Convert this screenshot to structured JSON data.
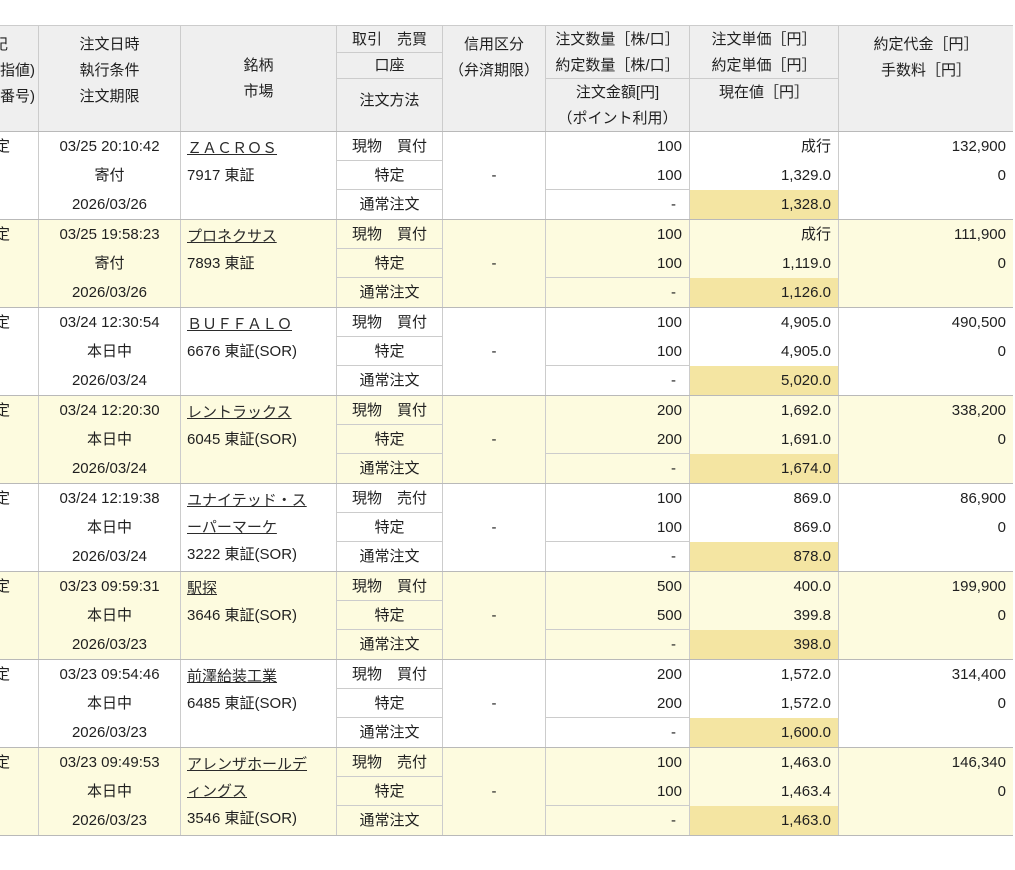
{
  "colors": {
    "row_alt": "#fdfbdf",
    "current_price_highlight": "#f4e5a2",
    "header_bg": "#efefef"
  },
  "table": {
    "header": {
      "col_status": [
        "記",
        "指値)",
        "番号)"
      ],
      "col_datetime": [
        "注文日時",
        "執行条件",
        "注文期限"
      ],
      "col_stock": [
        "銘柄",
        "市場"
      ],
      "col_trade": [
        "取引　売買",
        "口座",
        "注文方法"
      ],
      "col_margin": [
        "信用区分",
        "（弁済期限）"
      ],
      "col_qty": [
        "注文数量［株/口］",
        "約定数量［株/口］",
        "注文金額[円]",
        "（ポイント利用）"
      ],
      "col_price": [
        "注文単価［円］",
        "約定単価［円］",
        "現在値［円］"
      ],
      "col_amount": [
        "約定代金［円］",
        "手数料［円］"
      ]
    },
    "rows": [
      {
        "status": "定",
        "datetime": "03/25 20:10:42",
        "condition": "寄付",
        "expiry": "2026/03/26",
        "name": "ＺＡＣＲＯＳ",
        "code": "7917 東証",
        "trade": "現物　買付",
        "account": "特定",
        "method": "通常注文",
        "margin": "-",
        "order_qty": "100",
        "exec_qty": "100",
        "order_amount": "-",
        "order_price": "成行",
        "exec_price": "1,329.0",
        "current_price": "1,328.0",
        "exec_amount": "132,900",
        "fee": "0"
      },
      {
        "status": "定",
        "datetime": "03/25 19:58:23",
        "condition": "寄付",
        "expiry": "2026/03/26",
        "name": "プロネクサス",
        "code": "7893 東証",
        "trade": "現物　買付",
        "account": "特定",
        "method": "通常注文",
        "margin": "-",
        "order_qty": "100",
        "exec_qty": "100",
        "order_amount": "-",
        "order_price": "成行",
        "exec_price": "1,119.0",
        "current_price": "1,126.0",
        "exec_amount": "111,900",
        "fee": "0"
      },
      {
        "status": "定",
        "datetime": "03/24 12:30:54",
        "condition": "本日中",
        "expiry": "2026/03/24",
        "name": "ＢＵＦＦＡＬＯ",
        "code": "6676 東証(SOR)",
        "trade": "現物　買付",
        "account": "特定",
        "method": "通常注文",
        "margin": "-",
        "order_qty": "100",
        "exec_qty": "100",
        "order_amount": "-",
        "order_price": "4,905.0",
        "exec_price": "4,905.0",
        "current_price": "5,020.0",
        "exec_amount": "490,500",
        "fee": "0"
      },
      {
        "status": "定",
        "datetime": "03/24 12:20:30",
        "condition": "本日中",
        "expiry": "2026/03/24",
        "name": "レントラックス",
        "code": "6045 東証(SOR)",
        "trade": "現物　買付",
        "account": "特定",
        "method": "通常注文",
        "margin": "-",
        "order_qty": "200",
        "exec_qty": "200",
        "order_amount": "-",
        "order_price": "1,692.0",
        "exec_price": "1,691.0",
        "current_price": "1,674.0",
        "exec_amount": "338,200",
        "fee": "0"
      },
      {
        "status": "定",
        "datetime": "03/24 12:19:38",
        "condition": "本日中",
        "expiry": "2026/03/24",
        "name": "ユナイテッド・ス\nーパーマーケ",
        "code": "3222 東証(SOR)",
        "trade": "現物　売付",
        "account": "特定",
        "method": "通常注文",
        "margin": "-",
        "order_qty": "100",
        "exec_qty": "100",
        "order_amount": "-",
        "order_price": "869.0",
        "exec_price": "869.0",
        "current_price": "878.0",
        "exec_amount": "86,900",
        "fee": "0"
      },
      {
        "status": "定",
        "datetime": "03/23 09:59:31",
        "condition": "本日中",
        "expiry": "2026/03/23",
        "name": "駅探",
        "code": "3646 東証(SOR)",
        "trade": "現物　買付",
        "account": "特定",
        "method": "通常注文",
        "margin": "-",
        "order_qty": "500",
        "exec_qty": "500",
        "order_amount": "-",
        "order_price": "400.0",
        "exec_price": "399.8",
        "current_price": "398.0",
        "exec_amount": "199,900",
        "fee": "0"
      },
      {
        "status": "定",
        "datetime": "03/23 09:54:46",
        "condition": "本日中",
        "expiry": "2026/03/23",
        "name": "前澤給装工業",
        "code": "6485 東証(SOR)",
        "trade": "現物　買付",
        "account": "特定",
        "method": "通常注文",
        "margin": "-",
        "order_qty": "200",
        "exec_qty": "200",
        "order_amount": "-",
        "order_price": "1,572.0",
        "exec_price": "1,572.0",
        "current_price": "1,600.0",
        "exec_amount": "314,400",
        "fee": "0"
      },
      {
        "status": "定",
        "datetime": "03/23 09:49:53",
        "condition": "本日中",
        "expiry": "2026/03/23",
        "name": "アレンザホールデ\nィングス",
        "code": "3546 東証(SOR)",
        "trade": "現物　売付",
        "account": "特定",
        "method": "通常注文",
        "margin": "-",
        "order_qty": "100",
        "exec_qty": "100",
        "order_amount": "-",
        "order_price": "1,463.0",
        "exec_price": "1,463.4",
        "current_price": "1,463.0",
        "exec_amount": "146,340",
        "fee": "0"
      }
    ]
  }
}
